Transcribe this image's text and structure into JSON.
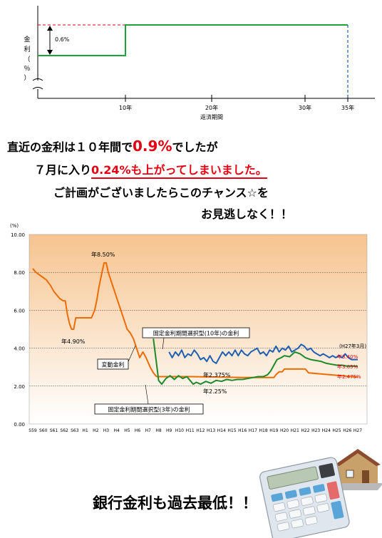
{
  "top_chart": {
    "y_axis_label": [
      "金",
      "利",
      "（",
      "％",
      "）"
    ],
    "rate_annotation": "0.6%",
    "x_ticks": [
      "10年",
      "20年",
      "30年",
      "35年"
    ],
    "x_axis_label": "返済期間"
  },
  "headline": {
    "line1_pre": "直近の金利は１０年間で",
    "line1_value": "0.9%",
    "line1_post": "でしたが",
    "line2_pre": "７月に入り",
    "line2_value": "0.24%も上がってしまいました。",
    "line3": "ご計画がございましたらこのチャンス☆を",
    "line4": "お見逃しなく！！"
  },
  "footer": {
    "text": "銀行金利も過去最低！！"
  },
  "chart_data": {
    "type": "line",
    "ylabel": "(%)",
    "ylim": [
      0,
      10
    ],
    "yticks": [
      "0.00",
      "2.00",
      "4.00",
      "6.00",
      "8.00",
      "10.00"
    ],
    "grid": true,
    "categories": [
      "S59",
      "S60",
      "S61",
      "S62",
      "S63",
      "H1",
      "H2",
      "H3",
      "H4",
      "H5",
      "H6",
      "H7",
      "H8",
      "H9",
      "H10",
      "H11",
      "H12",
      "H13",
      "H14",
      "H15",
      "H16",
      "H17",
      "H18",
      "H19",
      "H20",
      "H21",
      "H22",
      "H23",
      "H24",
      "H25",
      "H26",
      "H27"
    ],
    "annotations": {
      "peak": "年8.50%",
      "low": "年4.90%",
      "date": "(H27年3月)",
      "mid_a": "年2.375%",
      "mid_b": "年2.25%"
    },
    "series": [
      {
        "name": "変動金利",
        "color": "#ec6c00",
        "end_label": "年2.475%",
        "points": [
          [
            0.0,
            8.2
          ],
          [
            0.3,
            8.0
          ],
          [
            0.8,
            7.8
          ],
          [
            1.3,
            7.6
          ],
          [
            1.7,
            7.3
          ],
          [
            2.0,
            7.0
          ],
          [
            2.3,
            6.8
          ],
          [
            2.6,
            6.6
          ],
          [
            2.9,
            6.5
          ],
          [
            3.1,
            6.5
          ],
          [
            3.3,
            5.8
          ],
          [
            3.5,
            5.3
          ],
          [
            3.7,
            5.0
          ],
          [
            3.9,
            5.0
          ],
          [
            4.1,
            5.6
          ],
          [
            4.5,
            5.6
          ],
          [
            4.9,
            5.6
          ],
          [
            5.3,
            5.6
          ],
          [
            5.6,
            5.6
          ],
          [
            5.9,
            6.0
          ],
          [
            6.1,
            6.5
          ],
          [
            6.3,
            7.2
          ],
          [
            6.6,
            8.0
          ],
          [
            6.8,
            8.5
          ],
          [
            7.0,
            8.5
          ],
          [
            7.2,
            8.0
          ],
          [
            7.5,
            7.5
          ],
          [
            7.8,
            7.0
          ],
          [
            8.1,
            6.5
          ],
          [
            8.4,
            6.0
          ],
          [
            8.7,
            5.5
          ],
          [
            9.0,
            5.0
          ],
          [
            9.3,
            4.8
          ],
          [
            9.6,
            4.5
          ],
          [
            9.9,
            4.0
          ],
          [
            10.2,
            3.5
          ],
          [
            10.5,
            3.8
          ],
          [
            10.8,
            3.5
          ],
          [
            11.2,
            3.0
          ],
          [
            11.5,
            2.7
          ],
          [
            11.8,
            2.5
          ],
          [
            12.0,
            2.5
          ],
          [
            15.0,
            2.5
          ],
          [
            20.0,
            2.45
          ],
          [
            23.0,
            2.45
          ],
          [
            23.2,
            2.6
          ],
          [
            23.5,
            2.75
          ],
          [
            23.8,
            2.75
          ],
          [
            24.0,
            2.9
          ],
          [
            26.0,
            2.9
          ],
          [
            26.3,
            2.7
          ],
          [
            31.0,
            2.475
          ]
        ]
      },
      {
        "name": "固定金利期間選択型(3年)の金利",
        "color": "#1a8a2a",
        "end_label": "年3.05%",
        "points": [
          [
            11.5,
            4.5
          ],
          [
            11.8,
            3.2
          ],
          [
            12.0,
            2.3
          ],
          [
            12.3,
            2.1
          ],
          [
            12.7,
            2.4
          ],
          [
            13.1,
            2.55
          ],
          [
            13.5,
            2.35
          ],
          [
            13.9,
            2.55
          ],
          [
            14.3,
            2.4
          ],
          [
            14.7,
            2.5
          ],
          [
            15.0,
            2.3
          ],
          [
            15.3,
            2.1
          ],
          [
            15.6,
            2.2
          ],
          [
            16.0,
            2.1
          ],
          [
            16.5,
            2.25
          ],
          [
            17.0,
            2.15
          ],
          [
            17.5,
            2.3
          ],
          [
            18.0,
            2.25
          ],
          [
            18.5,
            2.35
          ],
          [
            19.0,
            2.3
          ],
          [
            19.5,
            2.35
          ],
          [
            20.0,
            2.35
          ],
          [
            20.5,
            2.4
          ],
          [
            21.0,
            2.45
          ],
          [
            21.5,
            2.5
          ],
          [
            22.0,
            2.5
          ],
          [
            22.4,
            2.6
          ],
          [
            22.7,
            2.8
          ],
          [
            23.0,
            3.1
          ],
          [
            23.3,
            3.4
          ],
          [
            23.7,
            3.5
          ],
          [
            24.0,
            3.6
          ],
          [
            24.5,
            3.55
          ],
          [
            25.0,
            3.8
          ],
          [
            25.5,
            3.7
          ],
          [
            26.0,
            3.5
          ],
          [
            26.5,
            3.4
          ],
          [
            27.0,
            3.35
          ],
          [
            27.5,
            3.3
          ],
          [
            28.0,
            3.2
          ],
          [
            28.5,
            3.15
          ],
          [
            29.0,
            3.1
          ],
          [
            29.5,
            3.1
          ],
          [
            30.0,
            3.05
          ],
          [
            31.0,
            3.05
          ]
        ]
      },
      {
        "name": "固定金利期間選択型(10年)の金利",
        "color": "#1f5fb4",
        "end_label": "年3.40%",
        "points": [
          [
            13.0,
            3.8
          ],
          [
            13.3,
            3.5
          ],
          [
            13.6,
            3.8
          ],
          [
            13.9,
            3.6
          ],
          [
            14.2,
            3.9
          ],
          [
            14.5,
            3.5
          ],
          [
            14.8,
            3.7
          ],
          [
            15.1,
            3.6
          ],
          [
            15.4,
            3.9
          ],
          [
            15.7,
            3.7
          ],
          [
            16.0,
            3.4
          ],
          [
            16.3,
            3.5
          ],
          [
            16.6,
            3.3
          ],
          [
            16.9,
            3.6
          ],
          [
            17.2,
            3.3
          ],
          [
            17.5,
            3.2
          ],
          [
            17.8,
            3.5
          ],
          [
            18.1,
            3.8
          ],
          [
            18.4,
            3.6
          ],
          [
            18.7,
            3.8
          ],
          [
            19.0,
            3.6
          ],
          [
            19.3,
            3.9
          ],
          [
            19.6,
            3.6
          ],
          [
            19.9,
            3.9
          ],
          [
            20.2,
            3.7
          ],
          [
            20.5,
            3.6
          ],
          [
            20.8,
            3.8
          ],
          [
            21.1,
            3.9
          ],
          [
            21.4,
            4.0
          ],
          [
            21.7,
            3.7
          ],
          [
            22.0,
            3.8
          ],
          [
            22.3,
            3.6
          ],
          [
            22.6,
            3.9
          ],
          [
            22.9,
            3.8
          ],
          [
            23.2,
            4.1
          ],
          [
            23.5,
            3.8
          ],
          [
            23.8,
            4.0
          ],
          [
            24.1,
            3.9
          ],
          [
            24.4,
            4.1
          ],
          [
            24.7,
            3.8
          ],
          [
            25.0,
            3.9
          ],
          [
            25.3,
            4.0
          ],
          [
            25.6,
            4.2
          ],
          [
            25.9,
            4.1
          ],
          [
            26.2,
            3.9
          ],
          [
            26.5,
            4.0
          ],
          [
            26.8,
            3.8
          ],
          [
            27.1,
            3.7
          ],
          [
            27.4,
            3.6
          ],
          [
            27.7,
            3.7
          ],
          [
            28.0,
            3.6
          ],
          [
            28.3,
            3.5
          ],
          [
            28.6,
            3.6
          ],
          [
            28.9,
            3.5
          ],
          [
            29.2,
            3.6
          ],
          [
            29.5,
            3.5
          ],
          [
            29.8,
            3.7
          ],
          [
            30.1,
            3.5
          ],
          [
            30.4,
            3.4
          ],
          [
            31.0,
            3.4
          ]
        ]
      }
    ]
  }
}
